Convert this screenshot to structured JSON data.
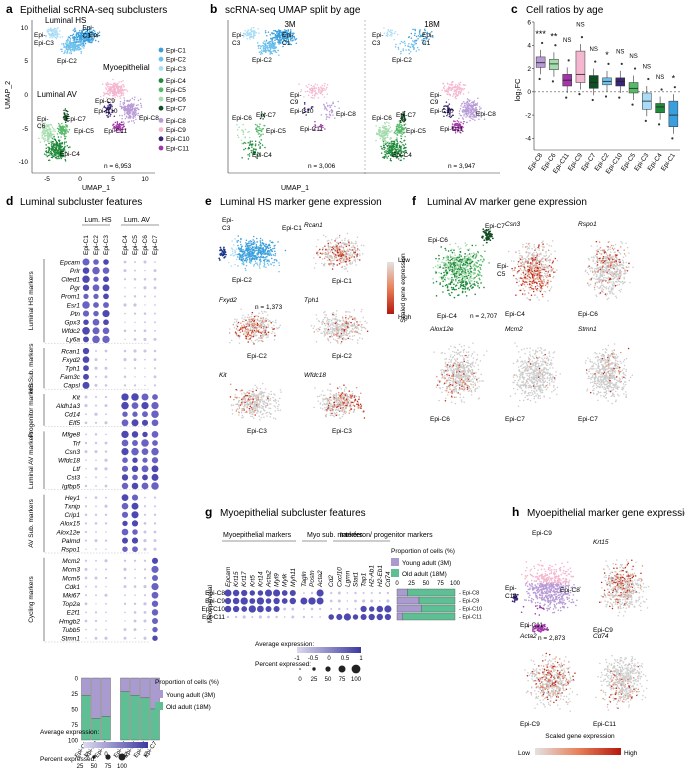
{
  "colors": {
    "c1": "#3a9fdc",
    "c2": "#6cc0ec",
    "c3": "#a9dcf6",
    "c4": "#1f8a3a",
    "c5": "#56b968",
    "c6": "#a5dcae",
    "c7": "#0f4d22",
    "c8": "#b89ad6",
    "c9": "#f5b6cf",
    "c10": "#3b2676",
    "c11": "#a136a8",
    "young": "#a99ad0",
    "old": "#5fbf94",
    "grey": "#cccccc",
    "exprLow": "#d9d6ee",
    "exprHigh": "#3c3a9f"
  },
  "panels": {
    "a": {
      "letter": "a",
      "title": "Epithelial scRNA-seq subclusters",
      "xlabel": "UMAP_1",
      "ylabel": "UMAP_2",
      "yticks": [
        "10",
        "5",
        "0",
        "-5",
        "-10"
      ],
      "xticks": [
        "-5",
        "0",
        "5",
        "10"
      ],
      "n": "n = 6,953",
      "lum_hs": "Luminal HS",
      "lum_av": "Luminal AV",
      "myo": "Myoepithelial",
      "legend": [
        "Epi-C1",
        "Epi-C2",
        "Epi-C3",
        "Epi-C4",
        "Epi-C5",
        "Epi-C6",
        "Epi-C7",
        "Epi-C8",
        "Epi-C9",
        "Epi-C10",
        "Epi-C11"
      ]
    },
    "b": {
      "letter": "b",
      "title": "scRNA-seq UMAP split by age",
      "left_title": "3M",
      "right_title": "18M",
      "n_left": "n = 3,006",
      "n_right": "n = 3,947",
      "xlabel": "UMAP_1"
    },
    "c": {
      "letter": "c",
      "title": "Cell ratios by age",
      "ylabel": "log₂FC",
      "yticks": [
        "6",
        "4",
        "2",
        "0",
        "-2",
        "-4"
      ]
    },
    "d": {
      "letter": "d",
      "title": "Luminal subcluster features",
      "lum_hs": "Lum. HS",
      "lum_av": "Lum. AV",
      "prop_title": "Proportion of cells (%)",
      "young": "Young adult (3M)",
      "old": "Old adult (18M)",
      "avg_expr": "Average expression:",
      "pct_expr": "Percent expressed:",
      "scale_ticks": [
        "-1",
        "0",
        "1",
        "2"
      ],
      "pct_ticks": [
        "25",
        "50",
        "75",
        "100"
      ],
      "prop_ticks": [
        "0",
        "25",
        "50",
        "75",
        "100"
      ],
      "groups": [
        "Luminal HS markers",
        "HS Sub. markers",
        "Progenitor markers",
        "Luminal AV markers",
        "AV Sub. markers",
        "Cycling markers"
      ]
    },
    "e": {
      "letter": "e",
      "title": "Luminal HS marker gene expression",
      "n": "n = 1,373"
    },
    "f": {
      "letter": "f",
      "title": "Luminal AV marker gene expression",
      "n": "n = 2,707",
      "scale_title": "Scaled gene expression",
      "low": "Low",
      "high": "High"
    },
    "g": {
      "letter": "g",
      "title": "Myoepithelial subcluster features",
      "row_title": "Myoepithelial",
      "hdr1": "Myoepithelial markers",
      "hdr2": "Myo sub. markers",
      "hdr3": "Interferon/ progenitor markers",
      "prop_title": "Proportion of cells (%)",
      "young": "Young adult (3M)",
      "old": "Old adult (18M)",
      "avg_expr": "Average expression:",
      "pct_expr": "Percent expressed:",
      "scale_ticks": [
        "-1",
        "-0.5",
        "0",
        "0.5",
        "1"
      ],
      "pct_ticks": [
        "0",
        "25",
        "50",
        "75",
        "100"
      ],
      "prop_ticks": [
        "0",
        "25",
        "50",
        "75",
        "100"
      ]
    },
    "h": {
      "letter": "h",
      "title": "Myoepithelial marker gene expression",
      "n": "n = 2,873",
      "scale_title": "Scaled gene expression",
      "low": "Low",
      "high": "High"
    }
  },
  "chart_data": [
    {
      "type": "scatter",
      "panel": "a",
      "title": "Epithelial scRNA-seq subclusters",
      "xlabel": "UMAP_1",
      "ylabel": "UMAP_2",
      "xlim": [
        -8,
        12
      ],
      "ylim": [
        -11,
        12
      ],
      "clusters": [
        {
          "name": "Epi-C1",
          "center": [
            0.5,
            9.5
          ]
        },
        {
          "name": "Epi-C2",
          "center": [
            -1.5,
            8.0
          ]
        },
        {
          "name": "Epi-C3",
          "center": [
            -4.5,
            10.0
          ]
        },
        {
          "name": "Epi-C4",
          "center": [
            -4.0,
            -7.5
          ]
        },
        {
          "name": "Epi-C5",
          "center": [
            -3.0,
            -4.5
          ]
        },
        {
          "name": "Epi-C6",
          "center": [
            -5.5,
            -5.0
          ]
        },
        {
          "name": "Epi-C7",
          "center": [
            -2.5,
            -2.5
          ]
        },
        {
          "name": "Epi-C8",
          "center": [
            8.0,
            -1.5
          ]
        },
        {
          "name": "Epi-C9",
          "center": [
            5.5,
            1.5
          ]
        },
        {
          "name": "Epi-C10",
          "center": [
            4.5,
            -1.5
          ]
        },
        {
          "name": "Epi-C11",
          "center": [
            6.0,
            -4.0
          ]
        }
      ]
    },
    {
      "type": "box",
      "panel": "c",
      "title": "Cell ratios by age",
      "ylabel": "log2FC",
      "ylim": [
        -5,
        6
      ],
      "categories": [
        "Epi-C8",
        "Epi-C6",
        "Epi-C11",
        "Epi-C9",
        "Epi-C7",
        "Epi-C2",
        "Epi-C10",
        "Epi-C5",
        "Epi-C3",
        "Epi-C4",
        "Epi-C1"
      ],
      "medians": [
        2.5,
        2.4,
        1.0,
        1.5,
        0.8,
        0.9,
        0.9,
        0.3,
        -0.8,
        -1.3,
        -2.0
      ],
      "q1": [
        2.1,
        1.9,
        0.5,
        0.8,
        0.3,
        0.6,
        0.5,
        -0.1,
        -1.5,
        -1.8,
        -3.0
      ],
      "q3": [
        3.0,
        2.8,
        1.5,
        3.5,
        1.4,
        1.2,
        1.2,
        0.8,
        -0.1,
        -1.0,
        -0.8
      ],
      "significance": [
        "***",
        "**",
        "NS",
        "NS",
        "NS",
        "*",
        "NS",
        "NS",
        "NS",
        "NS",
        "*"
      ]
    },
    {
      "type": "dot",
      "panel": "d",
      "clusters": [
        "Epi-C1",
        "Epi-C2",
        "Epi-C3",
        "Epi-C4",
        "Epi-C5",
        "Epi-C6",
        "Epi-C7"
      ],
      "genes": [
        "Epcam",
        "Prlr",
        "Cited1",
        "Pgr",
        "Prom1",
        "Esr1",
        "Ptn",
        "Gpx3",
        "Wfdc2",
        "Ly6a",
        "Rcan1",
        "Fxyd2",
        "Tph1",
        "Fam3c",
        "Capsl",
        "Kit",
        "Aldh1a3",
        "Cd14",
        "Elf5",
        "Mfge8",
        "Trf",
        "Csn3",
        "Wfdc18",
        "Ltf",
        "Cst3",
        "Igfbp5",
        "Hey1",
        "Txnip",
        "Crip1",
        "Alox15",
        "Alox12e",
        "Palmd",
        "Rspo1",
        "Mcm2",
        "Mcm3",
        "Mcm5",
        "Cdk1",
        "Mki67",
        "Top2a",
        "E2f1",
        "Hmgb2",
        "Tubb5",
        "Stmn1"
      ],
      "group_sizes": [
        10,
        5,
        4,
        7,
        7,
        10
      ],
      "group_high": [
        [
          0,
          1,
          2
        ],
        [
          0
        ],
        [
          3,
          4,
          5,
          6
        ],
        [
          3,
          4,
          5,
          6
        ],
        [
          3,
          4
        ],
        [
          6
        ]
      ],
      "proportion_young_pct": [
        28,
        65,
        62,
        22,
        28,
        32,
        50
      ]
    },
    {
      "type": "dot",
      "panel": "g",
      "clusters": [
        "Epi-C8",
        "Epi-C9",
        "Epi-C10",
        "Epi-C11"
      ],
      "genes": [
        "Epcam",
        "Krt15",
        "Krt17",
        "Krt5",
        "Krt14",
        "Acta2",
        "Myl9",
        "Mylk",
        "Myh11",
        "Tagln",
        "Postn",
        "Acta2",
        "Cd2",
        "Cxcl10",
        "Lgmn",
        "Stat1",
        "Tap1",
        "H2-Ab1",
        "H2-Eb1",
        "Cd74"
      ],
      "proportion_young_pct": [
        18,
        38,
        42,
        10
      ]
    },
    {
      "type": "scatter",
      "panel": "e",
      "plots": [
        {
          "label": "Epi-C1",
          "gene": ""
        },
        {
          "label": "Epi-C1",
          "gene": "Rcan1"
        },
        {
          "label": "Epi-C2",
          "gene": "Fxyd2"
        },
        {
          "label": "Epi-C2",
          "gene": "Tph1"
        },
        {
          "label": "Epi-C3",
          "gene": "Kit"
        },
        {
          "label": "Epi-C3",
          "gene": "Wfdc18"
        }
      ]
    },
    {
      "type": "scatter",
      "panel": "f",
      "plots": [
        {
          "label": "Epi-C4",
          "gene": ""
        },
        {
          "label": "Epi-C4",
          "gene": "Csn3"
        },
        {
          "label": "Epi-C6",
          "gene": "Rspo1"
        },
        {
          "label": "Epi-C6",
          "gene": "Alox12e"
        },
        {
          "label": "Epi-C7",
          "gene": "Mcm2"
        },
        {
          "label": "Epi-C7",
          "gene": "Stmn1"
        }
      ]
    },
    {
      "type": "scatter",
      "panel": "h",
      "plots": [
        {
          "label": "Epi-C9",
          "gene": ""
        },
        {
          "label": "Epi-C9",
          "gene": "Krt15"
        },
        {
          "label": "Epi-C9",
          "gene": "Acta2"
        },
        {
          "label": "Epi-C11",
          "gene": "Cd74"
        }
      ]
    }
  ]
}
